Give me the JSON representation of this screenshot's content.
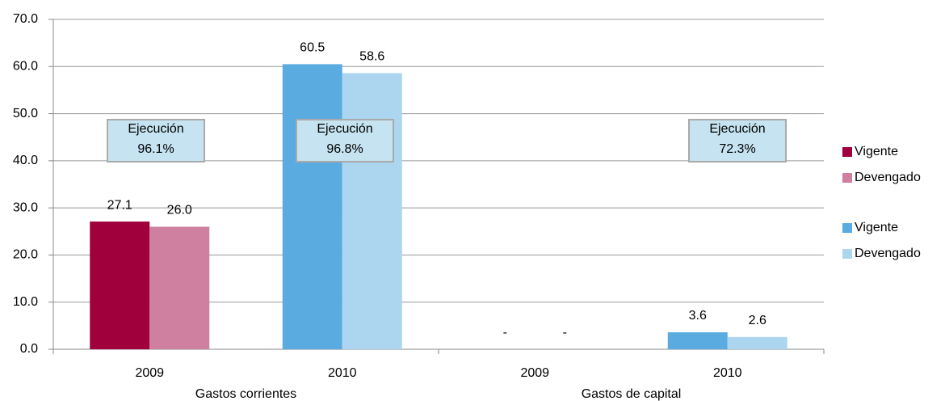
{
  "chart_data": {
    "type": "bar",
    "categories": [
      "2009",
      "2010",
      "2009",
      "2010"
    ],
    "group_labels": [
      "Gastos corrientes",
      "Gastos de capital"
    ],
    "series": [
      {
        "name": "Vigente",
        "color": "#a0003c",
        "values": [
          27.1,
          null,
          0,
          null
        ],
        "value_labels": [
          "27.1",
          null,
          "-",
          null
        ]
      },
      {
        "name": "Devengado",
        "color": "#cf7f9f",
        "values": [
          26.0,
          null,
          0,
          null
        ],
        "value_labels": [
          "26.0",
          null,
          "-",
          null
        ]
      },
      {
        "name": "Vigente",
        "color": "#5aabe0",
        "values": [
          null,
          60.5,
          null,
          3.6
        ],
        "value_labels": [
          null,
          "60.5",
          null,
          "3.6"
        ]
      },
      {
        "name": "Devengado",
        "color": "#acd5f0",
        "values": [
          null,
          58.6,
          null,
          2.6
        ],
        "value_labels": [
          null,
          "58.6",
          null,
          "2.6"
        ]
      }
    ],
    "annotations": [
      {
        "lines": [
          "Ejecución",
          "96.1%"
        ]
      },
      {
        "lines": [
          "Ejecución",
          "96.8%"
        ]
      },
      {
        "lines": [
          "Ejecución",
          "72.3%"
        ]
      }
    ],
    "ylim": [
      0,
      70
    ],
    "yticks": [
      {
        "value": 0,
        "label": "0.0"
      },
      {
        "value": 10,
        "label": "10.0"
      },
      {
        "value": 20,
        "label": "20.0"
      },
      {
        "value": 30,
        "label": "30.0"
      },
      {
        "value": 40,
        "label": "40.0"
      },
      {
        "value": 50,
        "label": "50.0"
      },
      {
        "value": 60,
        "label": "60.0"
      },
      {
        "value": 70,
        "label": "70.0"
      }
    ],
    "grid": true,
    "legend": "right"
  }
}
